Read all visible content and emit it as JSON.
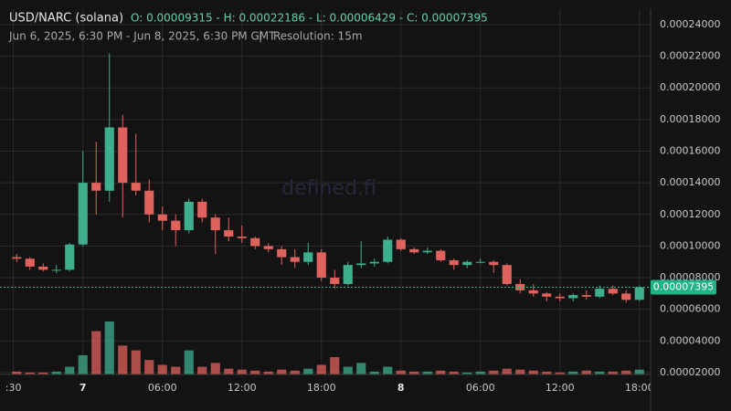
{
  "chart_data": {
    "type": "candlestick",
    "title": "USD/NARC (solana)",
    "ohlc_summary": "O: 0.00009315 - H: 0.00022186 - L: 0.00006429 - C: 0.00007395",
    "subtitle": "Jun 6, 2025, 6:30 PM - Jun 8, 2025, 6:30 PM GMT",
    "resolution": "Resolution: 15m",
    "watermark": "defined.fi",
    "last_price": 7.395e-05,
    "up_color": "#3fae8f",
    "down_color": "#e0625c",
    "grid": true,
    "x": [
      19,
      20,
      21,
      22,
      23,
      24,
      25,
      26,
      27,
      28,
      29,
      30,
      31,
      32,
      33,
      34,
      35,
      36,
      37,
      38,
      39,
      40,
      41,
      42,
      43,
      44,
      45,
      46,
      47,
      48,
      49,
      50,
      51,
      52,
      53,
      54,
      55,
      56,
      57,
      58,
      59,
      60,
      61,
      62,
      63,
      64,
      65,
      66
    ],
    "open": [
      9.3e-05,
      9.2e-05,
      8.7e-05,
      8.5e-05,
      8.5e-05,
      0.000101,
      0.00014,
      0.000135,
      0.000175,
      0.00014,
      0.000135,
      0.00012,
      0.000116,
      0.00011,
      0.000128,
      0.000118,
      0.00011,
      0.000106,
      0.000105,
      0.0001,
      9.8e-05,
      9.3e-05,
      9e-05,
      9.6e-05,
      8e-05,
      7.6e-05,
      8.8e-05,
      8.9e-05,
      9e-05,
      0.000104,
      9.8e-05,
      9.6e-05,
      9.7e-05,
      9.1e-05,
      8.8e-05,
      9e-05,
      9e-05,
      8.8e-05,
      7.6e-05,
      7.2e-05,
      7e-05,
      6.8e-05,
      6.7e-05,
      6.9e-05,
      6.8e-05,
      7.3e-05,
      7e-05,
      6.6e-05
    ],
    "high": [
      9.5e-05,
      9.3e-05,
      8.9e-05,
      8.8e-05,
      0.000102,
      0.00016,
      0.000166,
      0.00022186,
      0.000183,
      0.000171,
      0.000142,
      0.000125,
      0.00012,
      0.00013,
      0.00013,
      0.00012,
      0.000118,
      0.000113,
      0.000106,
      0.000102,
      0.0001,
      9.8e-05,
      0.000102,
      9.8e-05,
      8.5e-05,
      9e-05,
      0.000103,
      9.2e-05,
      0.000106,
      0.000105,
      9.9e-05,
      9.9e-05,
      9.8e-05,
      9.2e-05,
      9.1e-05,
      9.2e-05,
      9.1e-05,
      8.9e-05,
      7.9e-05,
      7.6e-05,
      7.1e-05,
      7e-05,
      7e-05,
      7.2e-05,
      7.5e-05,
      7.5e-05,
      7.2e-05,
      7.5e-05
    ],
    "low": [
      9e-05,
      8.5e-05,
      8.4e-05,
      8.3e-05,
      8.4e-05,
      0.0001,
      0.00012,
      0.000128,
      0.000118,
      0.000132,
      0.000115,
      0.00011,
      0.0001,
      0.000108,
      0.000115,
      9.5e-05,
      0.000103,
      0.000102,
      9.8e-05,
      9.6e-05,
      8.8e-05,
      8.6e-05,
      8.8e-05,
      7.8e-05,
      7.3e-05,
      7.5e-05,
      8.6e-05,
      8.7e-05,
      8.9e-05,
      9.7e-05,
      9.5e-05,
      9.5e-05,
      9e-05,
      8.5e-05,
      8.6e-05,
      8.9e-05,
      8.3e-05,
      7.5e-05,
      7e-05,
      6.8e-05,
      6.5e-05,
      6.5e-05,
      6.5e-05,
      6.6e-05,
      6.7e-05,
      6.9e-05,
      6.429e-05,
      6.5e-05
    ],
    "close": [
      9.2e-05,
      8.7e-05,
      8.5e-05,
      8.5e-05,
      0.000101,
      0.00014,
      0.000135,
      0.000175,
      0.00014,
      0.000135,
      0.00012,
      0.000116,
      0.00011,
      0.000128,
      0.000118,
      0.00011,
      0.000106,
      0.000105,
      0.0001,
      9.8e-05,
      9.3e-05,
      9e-05,
      9.6e-05,
      8e-05,
      7.6e-05,
      8.8e-05,
      8.9e-05,
      9e-05,
      0.000104,
      9.8e-05,
      9.6e-05,
      9.7e-05,
      9.1e-05,
      8.8e-05,
      9e-05,
      9e-05,
      8.8e-05,
      7.6e-05,
      7.2e-05,
      7e-05,
      6.8e-05,
      6.7e-05,
      6.9e-05,
      6.8e-05,
      7.3e-05,
      7e-05,
      6.6e-05,
      7.395e-05
    ],
    "volume": [
      3,
      2,
      2,
      3,
      8,
      20,
      45,
      55,
      30,
      25,
      15,
      10,
      8,
      25,
      8,
      12,
      6,
      5,
      4,
      3,
      5,
      4,
      6,
      10,
      18,
      8,
      12,
      3,
      8,
      4,
      3,
      3,
      4,
      3,
      2,
      3,
      4,
      6,
      5,
      4,
      3,
      2,
      3,
      4,
      3,
      3,
      4,
      5
    ],
    "xlim": [
      18.5,
      66.5
    ],
    "xticks": [
      {
        "value": 18.75,
        "label": ":30"
      },
      {
        "value": 24,
        "label": "7"
      },
      {
        "value": 30,
        "label": "06:00"
      },
      {
        "value": 36,
        "label": "12:00"
      },
      {
        "value": 42,
        "label": "18:00"
      },
      {
        "value": 48,
        "label": "8"
      },
      {
        "value": 54,
        "label": "06:00"
      },
      {
        "value": 60,
        "label": "12:00"
      },
      {
        "value": 66,
        "label": "18:00"
      }
    ],
    "ylim": [
      1.88e-05,
      0.0002498
    ],
    "yticks": [
      {
        "value": 2e-05,
        "label": "0.00002000"
      },
      {
        "value": 4e-05,
        "label": "0.00004000"
      },
      {
        "value": 6e-05,
        "label": "0.00006000"
      },
      {
        "value": 8e-05,
        "label": "0.00008000"
      },
      {
        "value": 0.0001,
        "label": "0.00010000"
      },
      {
        "value": 0.00012,
        "label": "0.00012000"
      },
      {
        "value": 0.00014,
        "label": "0.00014000"
      },
      {
        "value": 0.00016,
        "label": "0.00016000"
      },
      {
        "value": 0.00018,
        "label": "0.00018000"
      },
      {
        "value": 0.0002,
        "label": "0.00020000"
      },
      {
        "value": 0.00022,
        "label": "0.00022000"
      },
      {
        "value": 0.00024,
        "label": "0.00024000"
      }
    ]
  }
}
